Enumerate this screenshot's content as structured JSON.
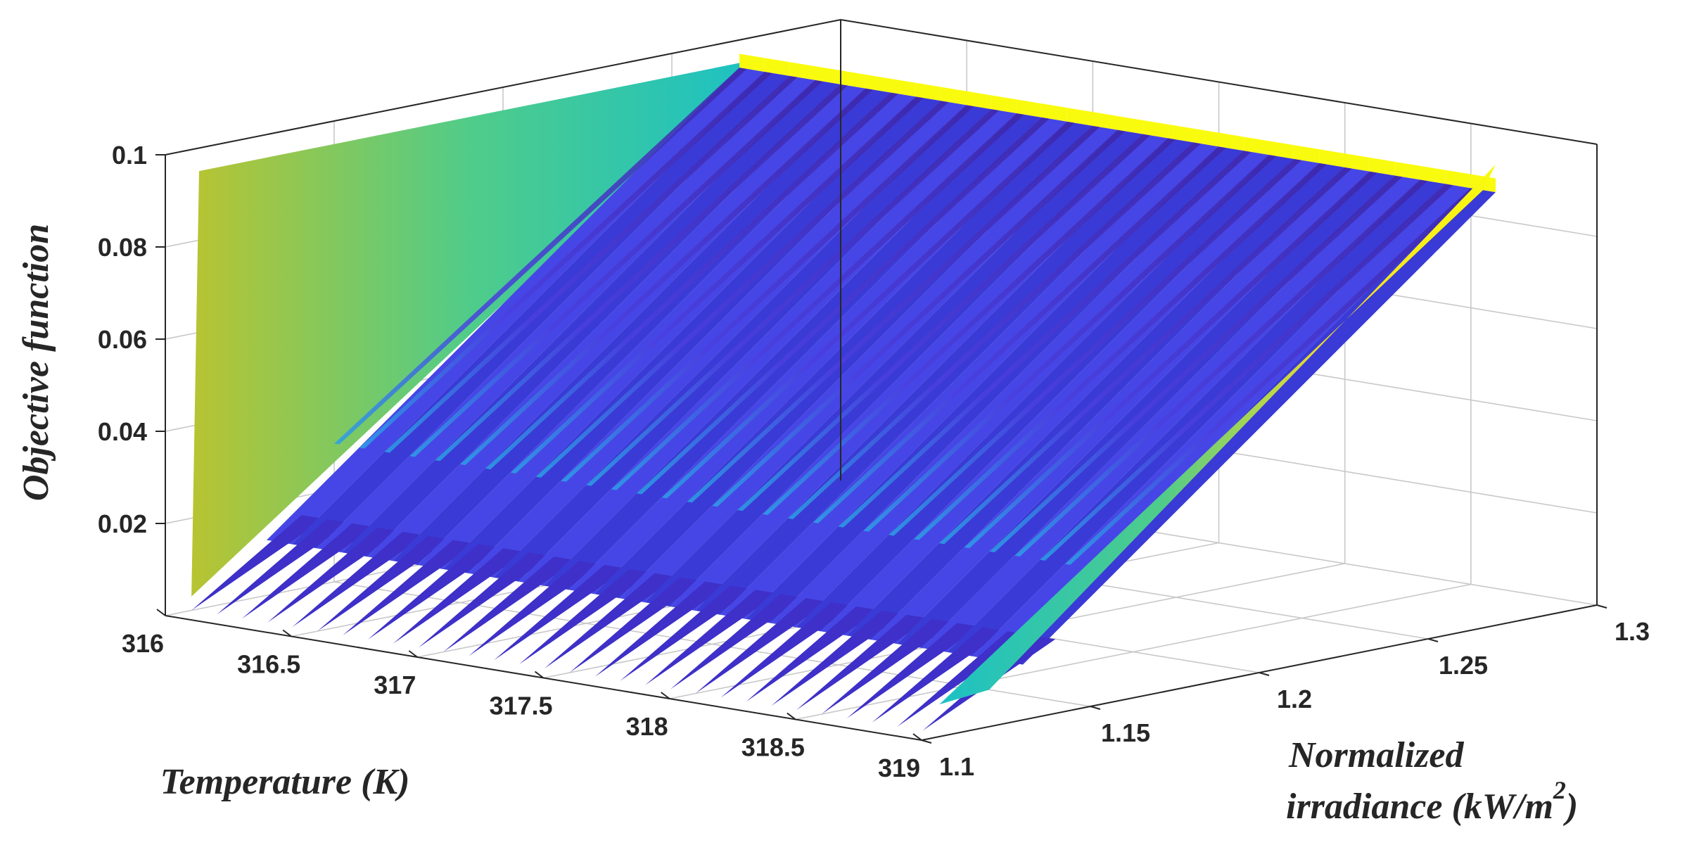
{
  "chart_data": {
    "type": "surface",
    "title": "",
    "zlabel": "Objective function",
    "xlabel": "Temperature (K)",
    "ylabel_line1": "Normalized",
    "ylabel_line2": "irradiance (kW/m",
    "ylabel_sup": "2",
    "ylabel_close": ")",
    "xlim": [
      316,
      319
    ],
    "ylim": [
      1.1,
      1.3
    ],
    "zlim": [
      0,
      0.1
    ],
    "x_ticks": [
      "316",
      "316.5",
      "317",
      "317.5",
      "318",
      "318.5",
      "319"
    ],
    "y_ticks": [
      "1.1",
      "1.15",
      "1.2",
      "1.25",
      "1.3"
    ],
    "z_ticks": [
      "0.02",
      "0.04",
      "0.06",
      "0.08",
      "0.1"
    ],
    "grid": true,
    "colormap": [
      "#3e26a8",
      "#4a3fe0",
      "#3b7bf5",
      "#2ba3e5",
      "#1cc1c4",
      "#4fcc8a",
      "#b8c431",
      "#f5dc24",
      "#f9fb0e"
    ],
    "surface_profile": {
      "x_at_top": 316.0,
      "temperatures_sampled": [
        316.0,
        316.1,
        316.2,
        316.3,
        316.4,
        316.5,
        316.6,
        316.7,
        316.8,
        316.9,
        317.0,
        317.1,
        317.2,
        317.3,
        317.4,
        317.5,
        317.6,
        317.7,
        317.8,
        317.9,
        318.0,
        318.1,
        318.2,
        318.3,
        318.4,
        318.5,
        318.6,
        318.7,
        318.8,
        318.9,
        319.0
      ],
      "edge_max": 0.1,
      "trough_min": 0.001,
      "ridge_value": 0.094
    }
  }
}
